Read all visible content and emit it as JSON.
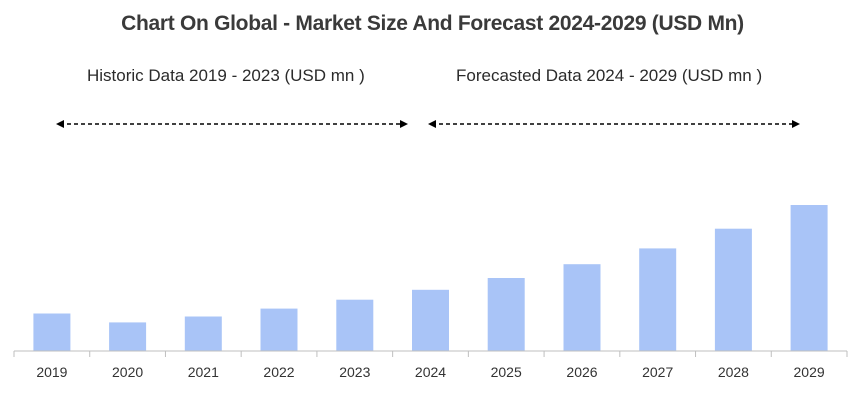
{
  "title": "Chart On Global - Market Size And Forecast 2024-2029 (USD Mn)",
  "historic_label": "Historic Data 2019 - 2023 (USD mn )",
  "forecast_label": "Forecasted Data 2024 - 2029 (USD mn )",
  "colors": {
    "bar": "#a9c4f7",
    "axis": "#bfbfbf",
    "arrow": "#000000"
  },
  "chart_data": {
    "type": "bar",
    "categories": [
      "2019",
      "2020",
      "2021",
      "2022",
      "2023",
      "2024",
      "2025",
      "2026",
      "2027",
      "2028",
      "2029"
    ],
    "values": [
      38,
      29,
      35,
      43,
      52,
      62,
      74,
      88,
      104,
      124,
      148
    ],
    "ylim": [
      0,
      150
    ],
    "grid": false,
    "title": "Chart On Global - Market Size And Forecast 2024-2029 (USD Mn)"
  }
}
